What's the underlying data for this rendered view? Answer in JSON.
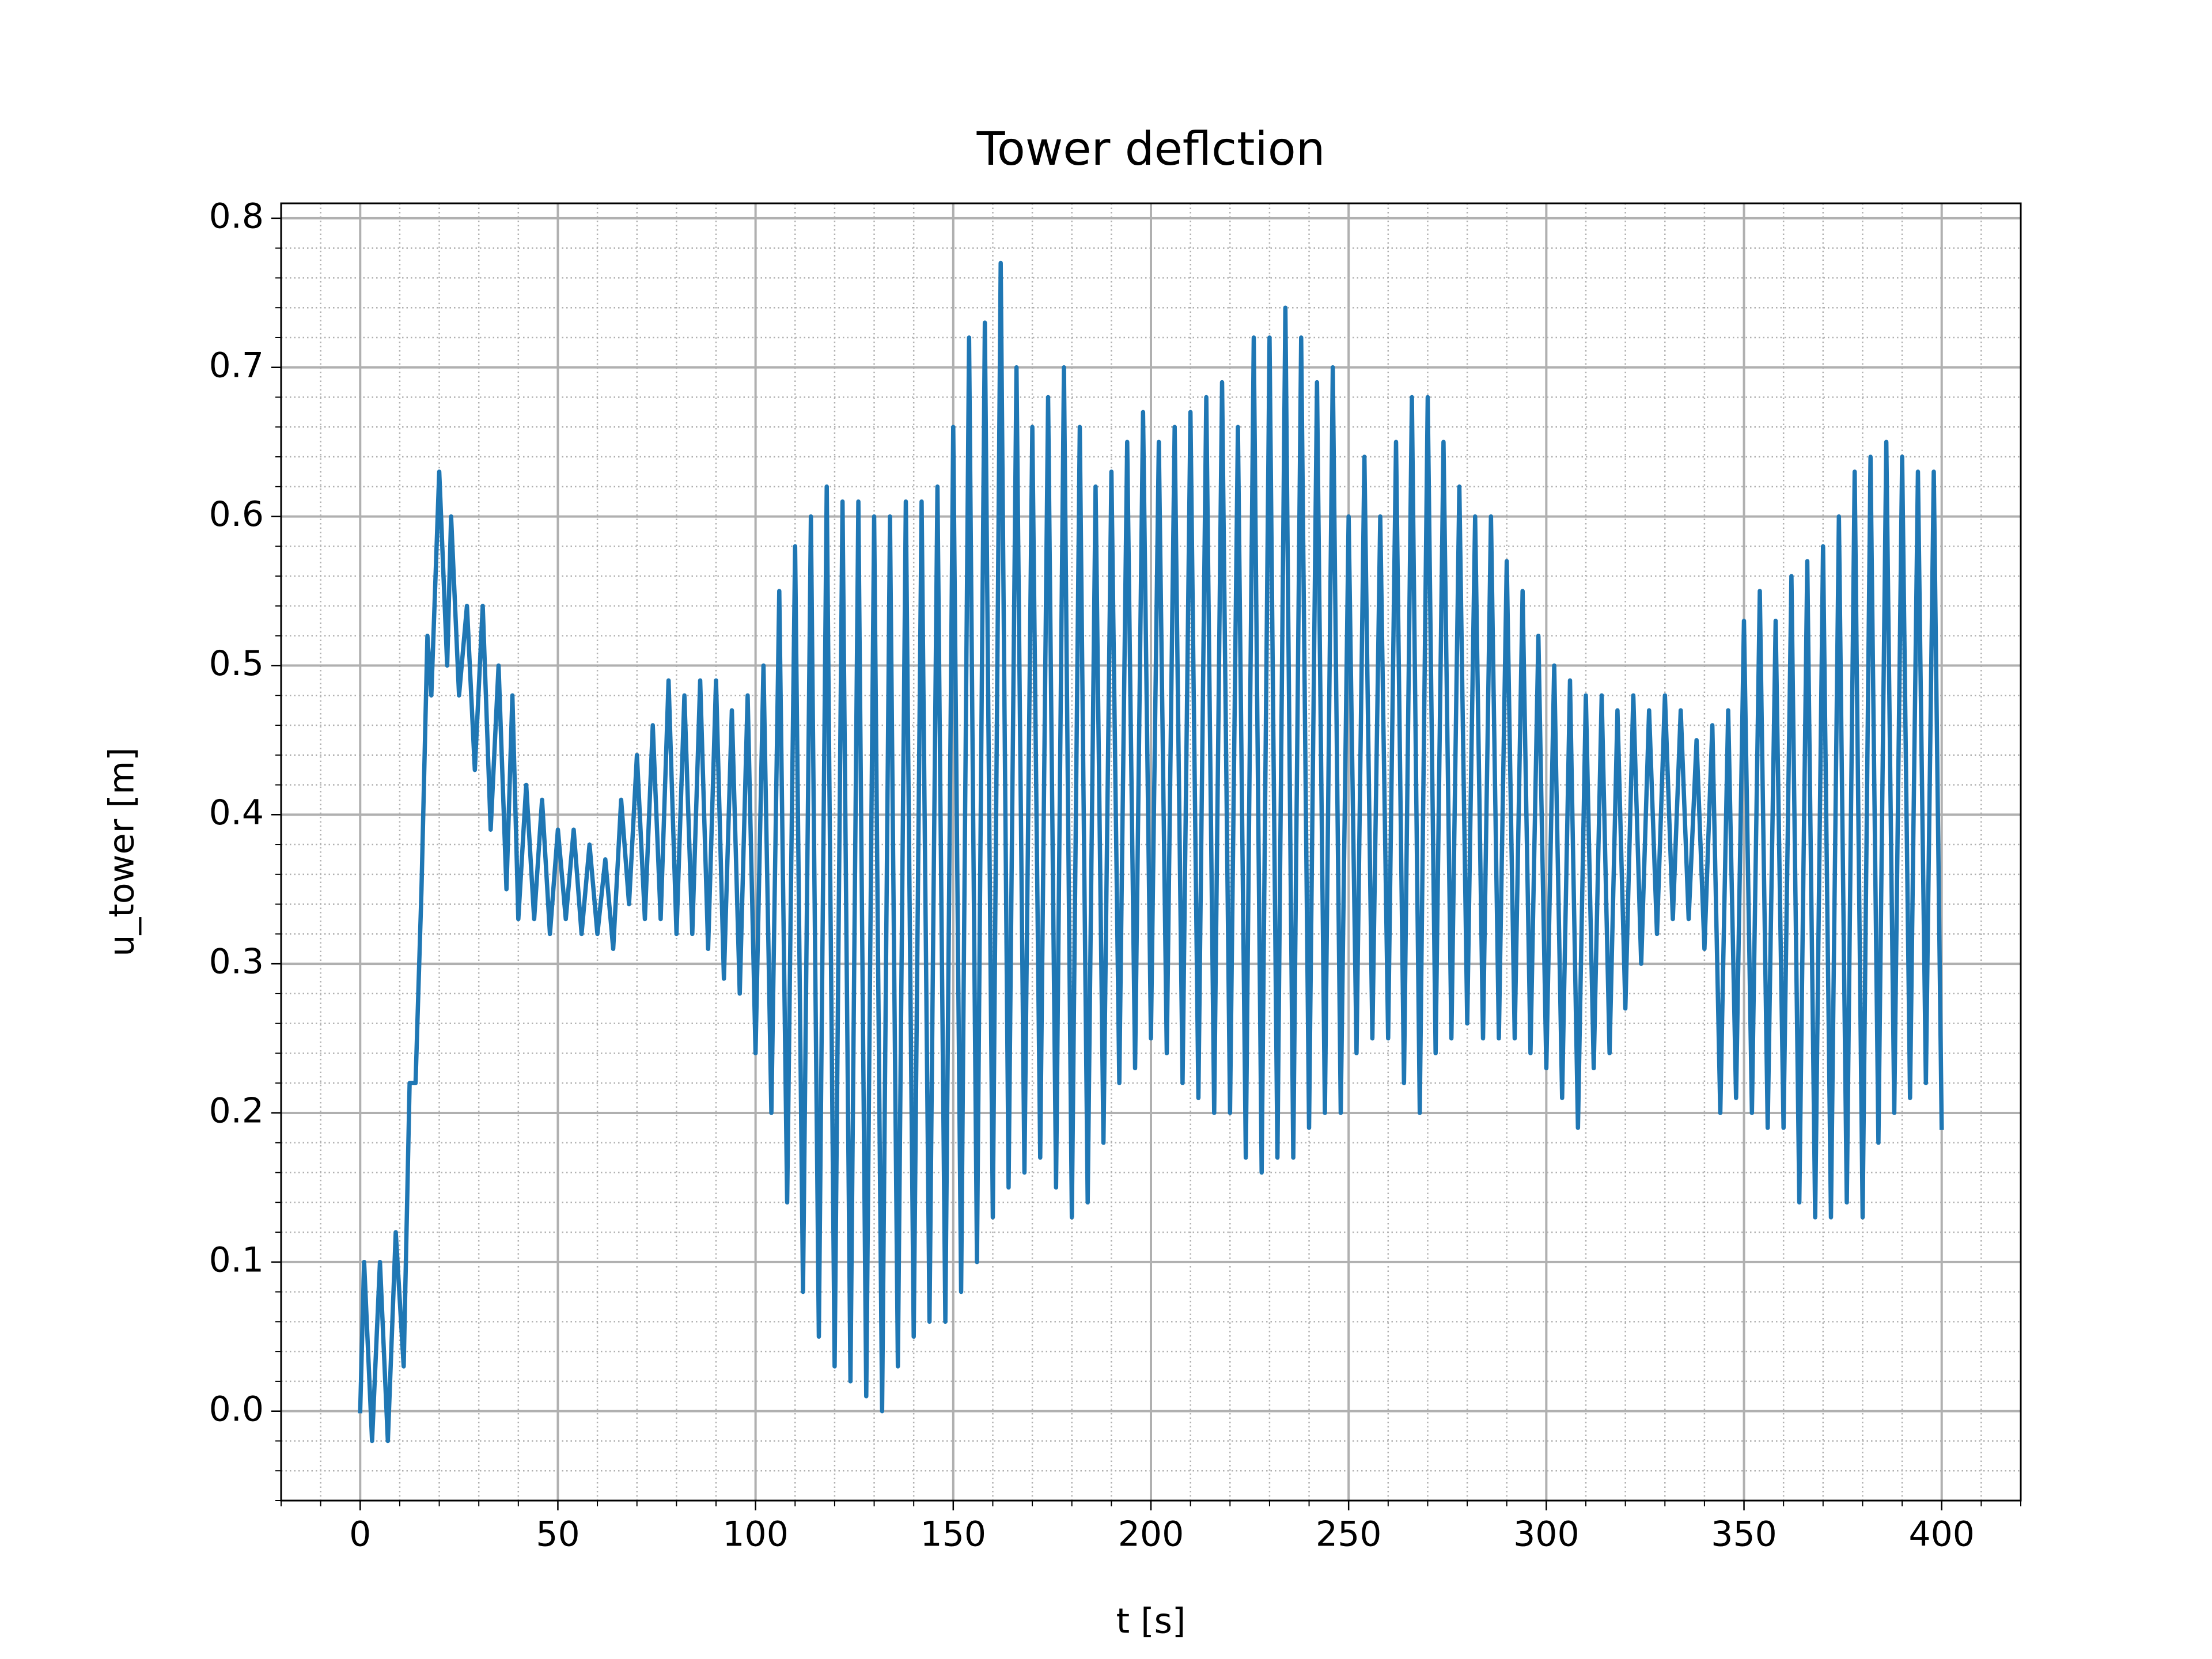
{
  "chart_data": {
    "type": "line",
    "title": "Tower deflction",
    "x_label": "t [s]",
    "y_label": "u_tower [m]",
    "x": [
      0,
      1,
      3,
      5,
      7,
      9,
      11,
      12.5,
      14,
      15.5,
      17,
      18,
      20,
      22,
      23,
      25,
      27,
      29,
      31,
      33,
      35,
      37,
      38.5,
      40,
      42,
      44,
      46,
      48,
      50,
      52,
      54,
      56,
      58,
      60,
      62,
      64,
      66,
      68,
      70,
      72,
      74,
      76,
      78,
      80,
      82,
      84,
      86,
      88,
      90,
      92,
      94,
      96,
      98,
      100,
      102,
      104,
      106,
      108,
      110,
      112,
      114,
      116,
      118,
      120,
      122,
      124,
      126,
      128,
      130,
      132,
      134,
      136,
      138,
      140,
      142,
      144,
      146,
      148,
      150,
      152,
      154,
      156,
      158,
      160,
      162,
      164,
      166,
      168,
      170,
      172,
      174,
      176,
      178,
      180,
      182,
      184,
      186,
      188,
      190,
      192,
      194,
      196,
      198,
      200,
      202,
      204,
      206,
      208,
      210,
      212,
      214,
      216,
      218,
      220,
      222,
      224,
      226,
      228,
      230,
      232,
      234,
      236,
      238,
      240,
      242,
      244,
      246,
      248,
      250,
      252,
      254,
      256,
      258,
      260,
      262,
      264,
      266,
      268,
      270,
      272,
      274,
      276,
      278,
      280,
      282,
      284,
      286,
      288,
      290,
      292,
      294,
      296,
      298,
      300,
      302,
      304,
      306,
      308,
      310,
      312,
      314,
      316,
      318,
      320,
      322,
      324,
      326,
      328,
      330,
      332,
      334,
      336,
      338,
      340,
      342,
      344,
      346,
      348,
      350,
      352,
      354,
      356,
      358,
      360,
      362,
      364,
      366,
      368,
      370,
      372,
      374,
      376,
      378,
      380,
      382,
      384,
      386,
      388,
      390,
      392,
      394,
      396,
      398,
      400
    ],
    "series": [
      {
        "name": "u_tower",
        "color": "#1f77b4",
        "values": [
          0,
          0.1,
          -0.02,
          0.1,
          -0.02,
          0.12,
          0.03,
          0.22,
          0.22,
          0.35,
          0.52,
          0.48,
          0.63,
          0.5,
          0.6,
          0.48,
          0.54,
          0.43,
          0.54,
          0.39,
          0.5,
          0.35,
          0.48,
          0.33,
          0.42,
          0.33,
          0.41,
          0.32,
          0.39,
          0.33,
          0.39,
          0.32,
          0.38,
          0.32,
          0.37,
          0.31,
          0.41,
          0.34,
          0.44,
          0.33,
          0.46,
          0.33,
          0.49,
          0.32,
          0.48,
          0.32,
          0.49,
          0.31,
          0.49,
          0.29,
          0.47,
          0.28,
          0.48,
          0.24,
          0.5,
          0.2,
          0.55,
          0.14,
          0.58,
          0.08,
          0.6,
          0.05,
          0.62,
          0.03,
          0.61,
          0.02,
          0.61,
          0.01,
          0.6,
          0.0,
          0.6,
          0.03,
          0.61,
          0.05,
          0.61,
          0.06,
          0.62,
          0.06,
          0.66,
          0.08,
          0.72,
          0.1,
          0.73,
          0.13,
          0.77,
          0.15,
          0.7,
          0.16,
          0.66,
          0.17,
          0.68,
          0.15,
          0.7,
          0.13,
          0.66,
          0.14,
          0.62,
          0.18,
          0.63,
          0.22,
          0.65,
          0.23,
          0.67,
          0.25,
          0.65,
          0.24,
          0.66,
          0.22,
          0.67,
          0.21,
          0.68,
          0.2,
          0.69,
          0.2,
          0.66,
          0.17,
          0.72,
          0.16,
          0.72,
          0.17,
          0.74,
          0.17,
          0.72,
          0.19,
          0.69,
          0.2,
          0.7,
          0.2,
          0.6,
          0.24,
          0.64,
          0.25,
          0.6,
          0.25,
          0.65,
          0.22,
          0.68,
          0.2,
          0.68,
          0.24,
          0.65,
          0.25,
          0.62,
          0.26,
          0.6,
          0.25,
          0.6,
          0.25,
          0.57,
          0.25,
          0.55,
          0.24,
          0.52,
          0.23,
          0.5,
          0.21,
          0.49,
          0.19,
          0.48,
          0.23,
          0.48,
          0.24,
          0.47,
          0.27,
          0.48,
          0.3,
          0.47,
          0.32,
          0.48,
          0.33,
          0.47,
          0.33,
          0.45,
          0.31,
          0.46,
          0.2,
          0.47,
          0.21,
          0.53,
          0.2,
          0.55,
          0.19,
          0.53,
          0.19,
          0.56,
          0.14,
          0.57,
          0.13,
          0.58,
          0.13,
          0.6,
          0.14,
          0.63,
          0.13,
          0.64,
          0.18,
          0.65,
          0.2,
          0.64,
          0.21,
          0.63,
          0.22,
          0.63,
          0.19
        ]
      }
    ],
    "xlim": [
      -20,
      420
    ],
    "ylim": [
      -0.06,
      0.81
    ],
    "xticks": [
      0,
      50,
      100,
      150,
      200,
      250,
      300,
      350,
      400
    ],
    "yticks": [
      {
        "value": 0,
        "label": "0.0"
      },
      0.1,
      0.2,
      0.3,
      0.4,
      0.5,
      0.6,
      0.7,
      0.8
    ],
    "xminorticks": [
      -20,
      -10,
      10,
      20,
      30,
      40,
      60,
      70,
      80,
      90,
      110,
      120,
      130,
      140,
      160,
      170,
      180,
      190,
      210,
      220,
      230,
      240,
      260,
      270,
      280,
      290,
      310,
      320,
      330,
      340,
      360,
      370,
      380,
      390,
      410,
      420
    ],
    "yminorticks": [
      -0.06,
      -0.04,
      -0.02,
      0.02,
      0.04,
      0.06,
      0.08,
      0.12,
      0.14,
      0.16,
      0.18,
      0.22,
      0.24,
      0.26,
      0.28,
      0.32,
      0.34,
      0.36,
      0.38,
      0.42,
      0.44,
      0.46,
      0.48,
      0.52,
      0.54,
      0.56,
      0.58,
      0.62,
      0.64,
      0.66,
      0.68,
      0.72,
      0.74,
      0.76,
      0.78
    ],
    "grid": true,
    "minor_grid": true
  }
}
